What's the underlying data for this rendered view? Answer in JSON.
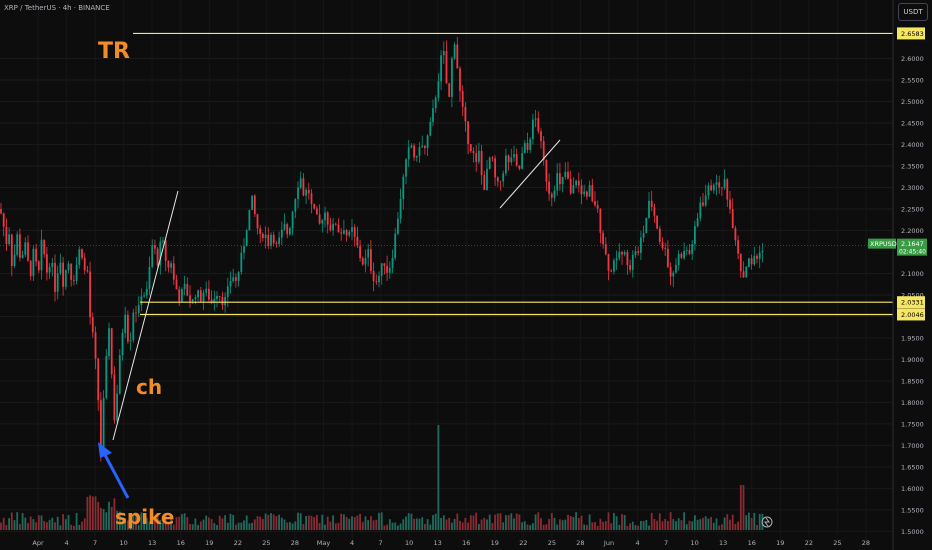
{
  "header": {
    "symbol_line": "XRP / TetherUS · 4h · BINANCE"
  },
  "currency_button": {
    "label": "USDT"
  },
  "colors": {
    "background": "#0d0d0d",
    "up": "#089981",
    "down": "#f23645",
    "volume_up": "#1f6b5e",
    "volume_down": "#8a2b33",
    "level_line": "#f5e663",
    "annotation_text": "#f28c28",
    "arrow": "#2962ff",
    "trendline": "#e6e6e6",
    "price_label_bg": "#3a9b45",
    "axis_text": "#b2b5be"
  },
  "annotations": {
    "tr_label": "TR",
    "ch_label": "ch",
    "spike_label": "spike"
  },
  "chart_data": {
    "type": "candlestick",
    "ylim": [
      1.48,
      2.75
    ],
    "y_ticks": [
      {
        "value": 2.6,
        "label": "2.6000"
      },
      {
        "value": 2.55,
        "label": "2.5500"
      },
      {
        "value": 2.5,
        "label": "2.5000"
      },
      {
        "value": 2.45,
        "label": "2.4500"
      },
      {
        "value": 2.4,
        "label": "2.4000"
      },
      {
        "value": 2.35,
        "label": "2.3500"
      },
      {
        "value": 2.3,
        "label": "2.3000"
      },
      {
        "value": 2.25,
        "label": "2.2500"
      },
      {
        "value": 2.2,
        "label": "2.2000"
      },
      {
        "value": 2.1,
        "label": "2.1000"
      },
      {
        "value": 2.05,
        "label": "2.0500"
      },
      {
        "value": 2.0,
        "label": "2.0000"
      },
      {
        "value": 1.95,
        "label": "1.9500"
      },
      {
        "value": 1.9,
        "label": "1.9000"
      },
      {
        "value": 1.85,
        "label": "1.8500"
      },
      {
        "value": 1.8,
        "label": "1.8000"
      },
      {
        "value": 1.75,
        "label": "1.7500"
      },
      {
        "value": 1.7,
        "label": "1.7000"
      },
      {
        "value": 1.65,
        "label": "1.6500"
      },
      {
        "value": 1.6,
        "label": "1.6000"
      },
      {
        "value": 1.55,
        "label": "1.5500"
      },
      {
        "value": 1.5,
        "label": "1.5000"
      }
    ],
    "x_ticks": [
      "Apr",
      "4",
      "7",
      "10",
      "13",
      "16",
      "19",
      "22",
      "25",
      "28",
      "May",
      "4",
      "7",
      "10",
      "13",
      "16",
      "19",
      "22",
      "25",
      "28",
      "Jun",
      "4",
      "7",
      "10",
      "13",
      "16",
      "19",
      "22",
      "25",
      "28"
    ],
    "levels": [
      {
        "value": 2.6583,
        "label": "2.6583"
      },
      {
        "value": 2.0331,
        "label": "2.0331"
      },
      {
        "value": 2.0046,
        "label": "2.0046"
      }
    ],
    "current_price": {
      "value": 2.1647,
      "symbol": "XRPUSDT",
      "label": "2.1647",
      "countdown": "02:45:40"
    },
    "price_path": [
      [
        0,
        2.25
      ],
      [
        3,
        2.22
      ],
      [
        6,
        2.17
      ],
      [
        9,
        2.2
      ],
      [
        12,
        2.12
      ],
      [
        15,
        2.15
      ],
      [
        18,
        2.2
      ],
      [
        21,
        2.11
      ],
      [
        24,
        2.18
      ],
      [
        27,
        2.14
      ],
      [
        30,
        2.09
      ],
      [
        33,
        2.15
      ],
      [
        36,
        2.12
      ],
      [
        39,
        2.1
      ],
      [
        42,
        2.18
      ],
      [
        45,
        2.13
      ],
      [
        48,
        2.09
      ],
      [
        51,
        2.16
      ],
      [
        54,
        2.05
      ],
      [
        57,
        2.1
      ],
      [
        60,
        2.14
      ],
      [
        63,
        2.08
      ],
      [
        66,
        2.11
      ],
      [
        69,
        2.13
      ],
      [
        72,
        2.08
      ],
      [
        75,
        2.1
      ],
      [
        78,
        2.14
      ],
      [
        81,
        2.17
      ],
      [
        84,
        2.1
      ],
      [
        87,
        2.12
      ],
      [
        90,
        2.0
      ],
      [
        93,
        1.95
      ],
      [
        96,
        1.88
      ],
      [
        99,
        1.78
      ],
      [
        101,
        1.68
      ],
      [
        103,
        1.78
      ],
      [
        105,
        1.85
      ],
      [
        107,
        1.92
      ],
      [
        109,
        1.98
      ],
      [
        111,
        1.9
      ],
      [
        113,
        1.8
      ],
      [
        115,
        1.75
      ],
      [
        117,
        1.82
      ],
      [
        119,
        1.88
      ],
      [
        121,
        1.93
      ],
      [
        123,
        1.98
      ],
      [
        125,
        2.02
      ],
      [
        127,
        1.97
      ],
      [
        129,
        1.93
      ],
      [
        131,
        1.96
      ],
      [
        133,
        2.01
      ],
      [
        135,
        2.04
      ],
      [
        137,
        1.99
      ],
      [
        139,
        2.02
      ],
      [
        141,
        2.05
      ],
      [
        143,
        2.08
      ],
      [
        145,
        2.03
      ],
      [
        147,
        2.06
      ],
      [
        149,
        2.1
      ],
      [
        151,
        2.14
      ],
      [
        153,
        2.18
      ],
      [
        155,
        2.15
      ],
      [
        157,
        2.12
      ],
      [
        159,
        2.15
      ],
      [
        162,
        2.18
      ],
      [
        165,
        2.14
      ],
      [
        168,
        2.11
      ],
      [
        171,
        2.13
      ],
      [
        174,
        2.08
      ],
      [
        177,
        2.06
      ],
      [
        180,
        2.04
      ],
      [
        184,
        2.07
      ],
      [
        188,
        2.05
      ],
      [
        192,
        2.03
      ],
      [
        196,
        2.06
      ],
      [
        200,
        2.04
      ],
      [
        204,
        2.06
      ],
      [
        208,
        2.05
      ],
      [
        212,
        2.03
      ],
      [
        216,
        2.06
      ],
      [
        220,
        2.05
      ],
      [
        224,
        2.03
      ],
      [
        228,
        2.06
      ],
      [
        232,
        2.1
      ],
      [
        236,
        2.08
      ],
      [
        240,
        2.12
      ],
      [
        244,
        2.17
      ],
      [
        248,
        2.23
      ],
      [
        252,
        2.27
      ],
      [
        256,
        2.22
      ],
      [
        260,
        2.18
      ],
      [
        264,
        2.2
      ],
      [
        268,
        2.17
      ],
      [
        272,
        2.2
      ],
      [
        276,
        2.16
      ],
      [
        280,
        2.18
      ],
      [
        284,
        2.21
      ],
      [
        288,
        2.19
      ],
      [
        292,
        2.24
      ],
      [
        296,
        2.29
      ],
      [
        300,
        2.33
      ],
      [
        304,
        2.28
      ],
      [
        308,
        2.3
      ],
      [
        312,
        2.25
      ],
      [
        316,
        2.23
      ],
      [
        320,
        2.21
      ],
      [
        324,
        2.25
      ],
      [
        328,
        2.22
      ],
      [
        332,
        2.2
      ],
      [
        336,
        2.22
      ],
      [
        340,
        2.19
      ],
      [
        344,
        2.21
      ],
      [
        348,
        2.18
      ],
      [
        352,
        2.2
      ],
      [
        356,
        2.17
      ],
      [
        360,
        2.14
      ],
      [
        364,
        2.12
      ],
      [
        368,
        2.15
      ],
      [
        372,
        2.1
      ],
      [
        376,
        2.08
      ],
      [
        380,
        2.1
      ],
      [
        384,
        2.13
      ],
      [
        388,
        2.1
      ],
      [
        392,
        2.14
      ],
      [
        396,
        2.2
      ],
      [
        400,
        2.27
      ],
      [
        404,
        2.33
      ],
      [
        408,
        2.38
      ],
      [
        412,
        2.4
      ],
      [
        416,
        2.35
      ],
      [
        420,
        2.41
      ],
      [
        424,
        2.38
      ],
      [
        428,
        2.42
      ],
      [
        432,
        2.46
      ],
      [
        436,
        2.52
      ],
      [
        440,
        2.58
      ],
      [
        443,
        2.63
      ],
      [
        446,
        2.55
      ],
      [
        449,
        2.5
      ],
      [
        452,
        2.6
      ],
      [
        455,
        2.65
      ],
      [
        458,
        2.56
      ],
      [
        461,
        2.5
      ],
      [
        464,
        2.46
      ],
      [
        467,
        2.42
      ],
      [
        470,
        2.4
      ],
      [
        473,
        2.38
      ],
      [
        476,
        2.35
      ],
      [
        479,
        2.38
      ],
      [
        482,
        2.32
      ],
      [
        485,
        2.3
      ],
      [
        488,
        2.35
      ],
      [
        491,
        2.38
      ],
      [
        494,
        2.33
      ],
      [
        497,
        2.3
      ],
      [
        500,
        2.31
      ],
      [
        503,
        2.34
      ],
      [
        506,
        2.37
      ],
      [
        509,
        2.35
      ],
      [
        512,
        2.38
      ],
      [
        515,
        2.36
      ],
      [
        518,
        2.33
      ],
      [
        521,
        2.36
      ],
      [
        524,
        2.4
      ],
      [
        527,
        2.38
      ],
      [
        530,
        2.42
      ],
      [
        533,
        2.45
      ],
      [
        536,
        2.46
      ],
      [
        539,
        2.43
      ],
      [
        542,
        2.38
      ],
      [
        545,
        2.34
      ],
      [
        548,
        2.3
      ],
      [
        551,
        2.28
      ],
      [
        554,
        2.3
      ],
      [
        557,
        2.33
      ],
      [
        560,
        2.3
      ],
      [
        563,
        2.32
      ],
      [
        566,
        2.34
      ],
      [
        569,
        2.3
      ],
      [
        572,
        2.27
      ],
      [
        575,
        2.33
      ],
      [
        578,
        2.31
      ],
      [
        581,
        2.28
      ],
      [
        584,
        2.3
      ],
      [
        587,
        2.27
      ],
      [
        590,
        2.3
      ],
      [
        593,
        2.25
      ],
      [
        596,
        2.27
      ],
      [
        599,
        2.22
      ],
      [
        602,
        2.19
      ],
      [
        605,
        2.15
      ],
      [
        608,
        2.12
      ],
      [
        611,
        2.1
      ],
      [
        614,
        2.14
      ],
      [
        617,
        2.12
      ],
      [
        620,
        2.16
      ],
      [
        623,
        2.13
      ],
      [
        626,
        2.15
      ],
      [
        629,
        2.11
      ],
      [
        632,
        2.13
      ],
      [
        635,
        2.16
      ],
      [
        638,
        2.14
      ],
      [
        641,
        2.18
      ],
      [
        644,
        2.2
      ],
      [
        647,
        2.24
      ],
      [
        650,
        2.27
      ],
      [
        653,
        2.25
      ],
      [
        656,
        2.22
      ],
      [
        659,
        2.19
      ],
      [
        662,
        2.15
      ],
      [
        665,
        2.17
      ],
      [
        668,
        2.12
      ],
      [
        671,
        2.09
      ],
      [
        674,
        2.11
      ],
      [
        677,
        2.13
      ],
      [
        680,
        2.15
      ],
      [
        683,
        2.14
      ],
      [
        686,
        2.16
      ],
      [
        689,
        2.14
      ],
      [
        692,
        2.17
      ],
      [
        695,
        2.2
      ],
      [
        698,
        2.23
      ],
      [
        701,
        2.28
      ],
      [
        704,
        2.26
      ],
      [
        707,
        2.3
      ],
      [
        710,
        2.29
      ],
      [
        713,
        2.32
      ],
      [
        716,
        2.3
      ],
      [
        719,
        2.31
      ],
      [
        722,
        2.29
      ],
      [
        725,
        2.32
      ],
      [
        728,
        2.27
      ],
      [
        731,
        2.24
      ],
      [
        734,
        2.2
      ],
      [
        737,
        2.17
      ],
      [
        740,
        2.12
      ],
      [
        743,
        2.09
      ],
      [
        746,
        2.12
      ],
      [
        749,
        2.14
      ],
      [
        752,
        2.11
      ],
      [
        755,
        2.15
      ],
      [
        758,
        2.13
      ],
      [
        761,
        2.16
      ],
      [
        764,
        2.1647
      ]
    ]
  }
}
